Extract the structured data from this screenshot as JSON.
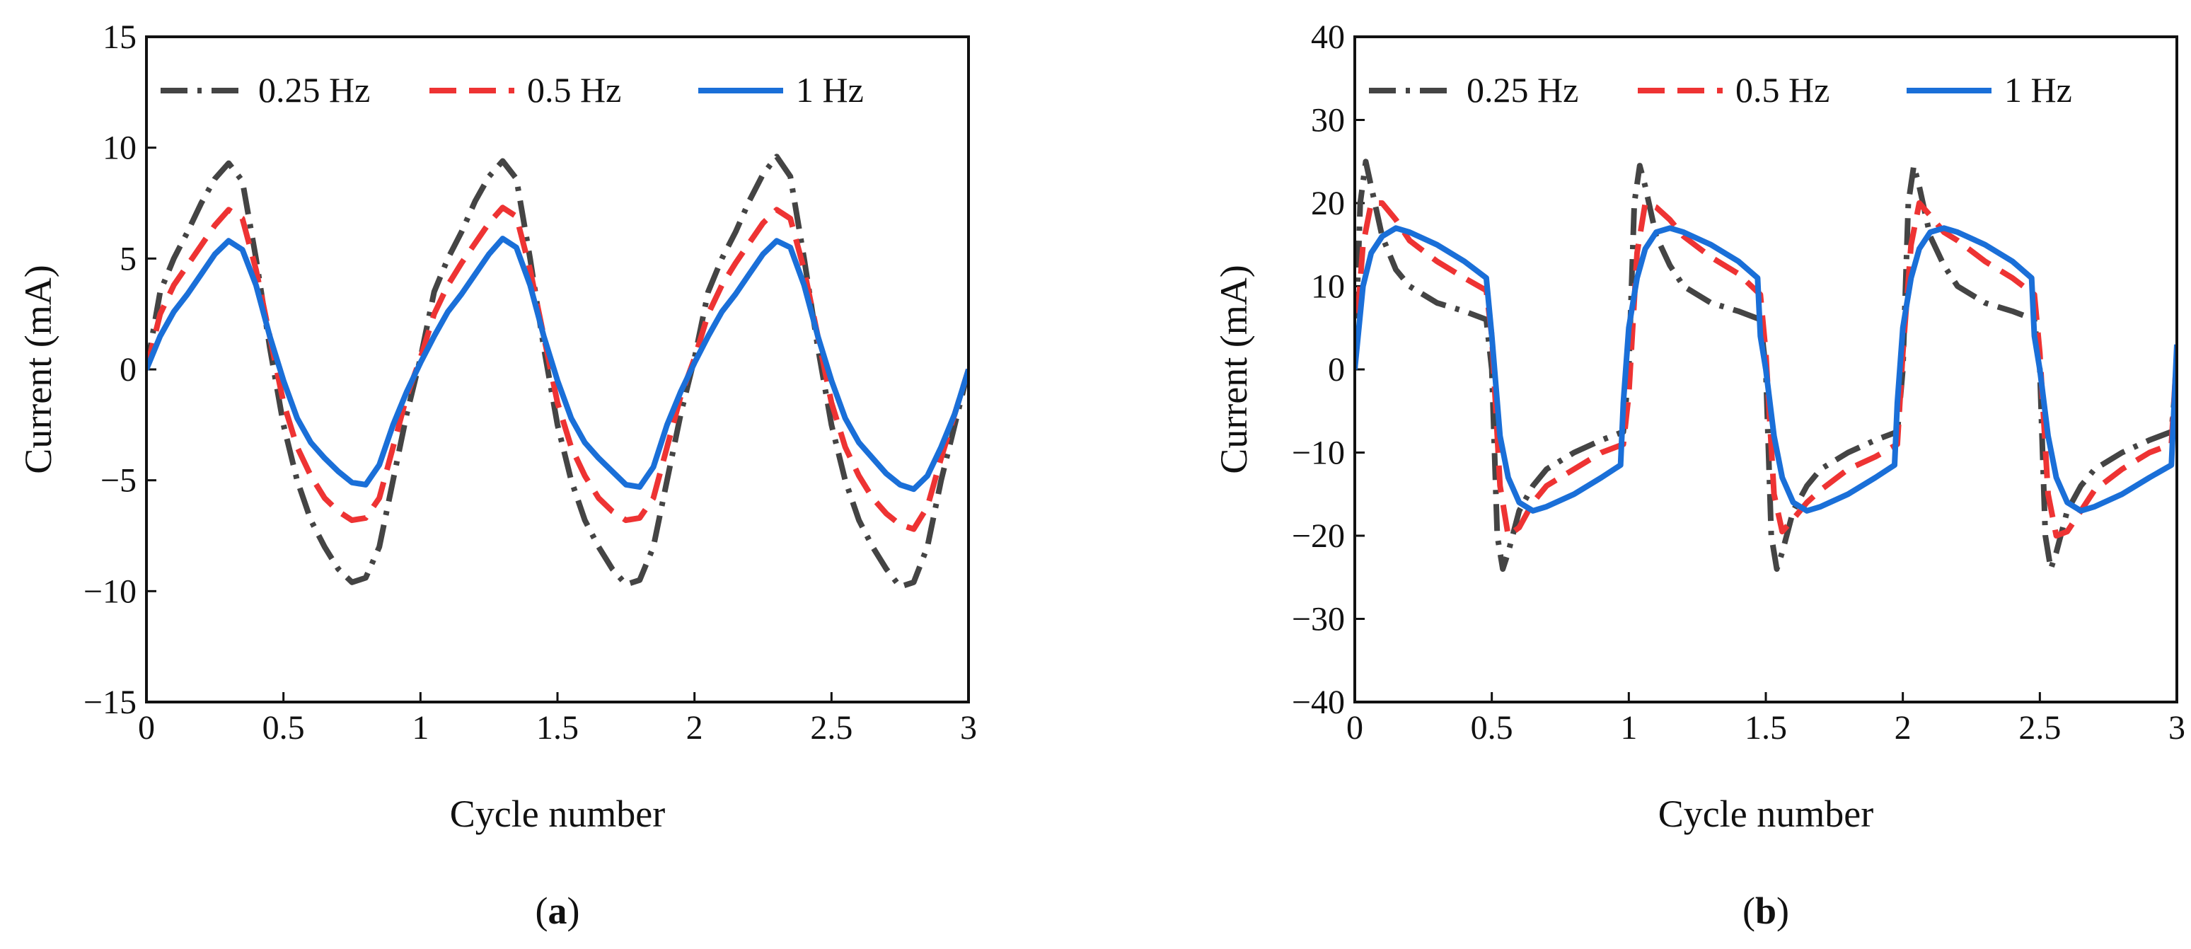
{
  "chart_data": [
    {
      "type": "line",
      "panel_label": "a",
      "xlabel": "Cycle number",
      "ylabel": "Current (mA)",
      "xlim": [
        0,
        3
      ],
      "ylim": [
        -15,
        15
      ],
      "xticks": [
        0,
        0.5,
        1,
        1.5,
        2,
        2.5,
        3
      ],
      "xtick_labels": [
        "0",
        "0.5",
        "1",
        "1.5",
        "2",
        "2.5",
        "3"
      ],
      "yticks": [
        -15,
        -10,
        -5,
        0,
        5,
        10,
        15
      ],
      "ytick_labels": [
        "−15",
        "−10",
        "−5",
        "0",
        "5",
        "10",
        "15"
      ],
      "legend_position": "top",
      "series": [
        {
          "name": "0.25 Hz",
          "color": "#444444",
          "style": "dashdot",
          "x": [
            0,
            0.05,
            0.1,
            0.15,
            0.2,
            0.25,
            0.3,
            0.35,
            0.4,
            0.45,
            0.5,
            0.55,
            0.6,
            0.65,
            0.7,
            0.75,
            0.8,
            0.85,
            0.9,
            0.95,
            1.0,
            1.05,
            1.1,
            1.15,
            1.2,
            1.25,
            1.3,
            1.35,
            1.4,
            1.45,
            1.5,
            1.55,
            1.6,
            1.65,
            1.7,
            1.75,
            1.8,
            1.85,
            1.9,
            1.95,
            2.0,
            2.05,
            2.1,
            2.15,
            2.2,
            2.25,
            2.3,
            2.35,
            2.4,
            2.45,
            2.5,
            2.55,
            2.6,
            2.65,
            2.7,
            2.75,
            2.8,
            2.85,
            2.9,
            2.95,
            3.0
          ],
          "y": [
            0,
            3.5,
            5.0,
            6.2,
            7.5,
            8.6,
            9.3,
            8.5,
            5.0,
            1.0,
            -2.5,
            -5.0,
            -6.8,
            -8.0,
            -9.0,
            -9.6,
            -9.4,
            -8.0,
            -5.0,
            -2.0,
            0.5,
            3.5,
            5.0,
            6.2,
            7.6,
            8.7,
            9.4,
            8.6,
            5.0,
            1.0,
            -2.5,
            -5.0,
            -6.8,
            -8.0,
            -9.0,
            -9.7,
            -9.5,
            -8.0,
            -5.0,
            -2.0,
            0.5,
            3.5,
            5.0,
            6.2,
            7.6,
            8.8,
            9.6,
            8.7,
            5.0,
            1.0,
            -2.5,
            -5.0,
            -6.8,
            -8.0,
            -9.0,
            -9.8,
            -9.6,
            -8.0,
            -5.0,
            -2.5,
            0
          ]
        },
        {
          "name": "0.5 Hz",
          "color": "#ee3333",
          "style": "dashed",
          "x": [
            0,
            0.05,
            0.1,
            0.15,
            0.2,
            0.25,
            0.3,
            0.35,
            0.4,
            0.45,
            0.5,
            0.55,
            0.6,
            0.65,
            0.7,
            0.75,
            0.8,
            0.85,
            0.9,
            0.95,
            1.0,
            1.05,
            1.1,
            1.15,
            1.2,
            1.25,
            1.3,
            1.35,
            1.4,
            1.45,
            1.5,
            1.55,
            1.6,
            1.65,
            1.7,
            1.75,
            1.8,
            1.85,
            1.9,
            1.95,
            2.0,
            2.05,
            2.1,
            2.15,
            2.2,
            2.25,
            2.3,
            2.35,
            2.4,
            2.45,
            2.5,
            2.55,
            2.6,
            2.65,
            2.7,
            2.75,
            2.8,
            2.85,
            2.9,
            2.95,
            3.0
          ],
          "y": [
            0,
            2.5,
            3.8,
            4.7,
            5.6,
            6.5,
            7.2,
            6.8,
            4.5,
            1.5,
            -1.5,
            -3.5,
            -4.8,
            -5.8,
            -6.4,
            -6.8,
            -6.7,
            -5.8,
            -3.5,
            -1.2,
            0.5,
            2.5,
            3.8,
            4.8,
            5.7,
            6.6,
            7.3,
            6.9,
            4.5,
            1.5,
            -1.5,
            -3.5,
            -4.8,
            -5.8,
            -6.4,
            -6.8,
            -6.7,
            -5.8,
            -3.5,
            -1.2,
            0.5,
            2.5,
            3.8,
            4.8,
            5.7,
            6.6,
            7.2,
            6.8,
            4.5,
            1.5,
            -1.5,
            -3.5,
            -4.8,
            -5.8,
            -6.5,
            -7.0,
            -7.2,
            -6.2,
            -4.0,
            -2.0,
            0
          ]
        },
        {
          "name": "1 Hz",
          "color": "#1a6fd8",
          "style": "solid",
          "x": [
            0,
            0.05,
            0.1,
            0.15,
            0.2,
            0.25,
            0.3,
            0.35,
            0.4,
            0.45,
            0.5,
            0.55,
            0.6,
            0.65,
            0.7,
            0.75,
            0.8,
            0.85,
            0.9,
            0.95,
            1.0,
            1.05,
            1.1,
            1.15,
            1.2,
            1.25,
            1.3,
            1.35,
            1.4,
            1.45,
            1.5,
            1.55,
            1.6,
            1.65,
            1.7,
            1.75,
            1.8,
            1.85,
            1.9,
            1.95,
            2.0,
            2.05,
            2.1,
            2.15,
            2.2,
            2.25,
            2.3,
            2.35,
            2.4,
            2.45,
            2.5,
            2.55,
            2.6,
            2.65,
            2.7,
            2.75,
            2.8,
            2.85,
            2.9,
            2.95,
            3.0
          ],
          "y": [
            0,
            1.5,
            2.6,
            3.4,
            4.3,
            5.2,
            5.8,
            5.4,
            3.8,
            1.5,
            -0.5,
            -2.2,
            -3.3,
            -4.0,
            -4.6,
            -5.1,
            -5.2,
            -4.3,
            -2.5,
            -1.0,
            0.3,
            1.5,
            2.6,
            3.4,
            4.3,
            5.2,
            5.9,
            5.5,
            3.8,
            1.5,
            -0.5,
            -2.2,
            -3.3,
            -4.0,
            -4.6,
            -5.2,
            -5.3,
            -4.4,
            -2.5,
            -1.0,
            0.3,
            1.5,
            2.6,
            3.4,
            4.3,
            5.2,
            5.8,
            5.5,
            3.8,
            1.5,
            -0.5,
            -2.2,
            -3.3,
            -4.0,
            -4.7,
            -5.2,
            -5.4,
            -4.8,
            -3.5,
            -2.0,
            0
          ]
        }
      ]
    },
    {
      "type": "line",
      "panel_label": "b",
      "xlabel": "Cycle number",
      "ylabel": "Current (mA)",
      "xlim": [
        0,
        3
      ],
      "ylim": [
        -40,
        40
      ],
      "xticks": [
        0,
        0.5,
        1,
        1.5,
        2,
        2.5,
        3
      ],
      "xtick_labels": [
        "0",
        "0.5",
        "1",
        "1.5",
        "2",
        "2.5",
        "3"
      ],
      "yticks": [
        -40,
        -30,
        -20,
        -10,
        0,
        10,
        20,
        30,
        40
      ],
      "ytick_labels": [
        "−40",
        "−30",
        "−20",
        "−10",
        "0",
        "10",
        "20",
        "30",
        "40"
      ],
      "legend_position": "top",
      "series": [
        {
          "name": "0.25 Hz",
          "color": "#444444",
          "style": "dashdot",
          "x": [
            0,
            0.02,
            0.04,
            0.06,
            0.1,
            0.15,
            0.2,
            0.3,
            0.4,
            0.48,
            0.5,
            0.52,
            0.54,
            0.56,
            0.6,
            0.65,
            0.7,
            0.8,
            0.9,
            0.98,
            1.0,
            1.02,
            1.04,
            1.06,
            1.1,
            1.15,
            1.2,
            1.3,
            1.4,
            1.48,
            1.5,
            1.52,
            1.54,
            1.56,
            1.6,
            1.65,
            1.7,
            1.8,
            1.9,
            1.98,
            2.0,
            2.02,
            2.04,
            2.06,
            2.1,
            2.15,
            2.2,
            2.3,
            2.4,
            2.48,
            2.5,
            2.52,
            2.54,
            2.56,
            2.6,
            2.65,
            2.7,
            2.8,
            2.9,
            2.98,
            3.0
          ],
          "y": [
            0,
            20,
            25,
            22,
            16,
            12,
            10,
            8,
            7,
            6,
            0,
            -20,
            -24,
            -22,
            -17,
            -14,
            -12,
            -10,
            -8.5,
            -7.5,
            0,
            20,
            24.5,
            22,
            16,
            12.5,
            10,
            8,
            7,
            6,
            0,
            -20,
            -24,
            -22,
            -17,
            -14,
            -12,
            -10,
            -8.5,
            -7.5,
            0,
            20,
            24.5,
            22,
            16,
            12.5,
            10,
            8,
            7,
            6,
            0,
            -20,
            -24,
            -22,
            -17,
            -14,
            -12,
            -10,
            -8.5,
            -7.5,
            0
          ]
        },
        {
          "name": "0.5 Hz",
          "color": "#ee3333",
          "style": "dashed",
          "x": [
            0,
            0.03,
            0.06,
            0.1,
            0.15,
            0.2,
            0.3,
            0.4,
            0.48,
            0.5,
            0.53,
            0.56,
            0.6,
            0.65,
            0.7,
            0.8,
            0.9,
            0.98,
            1.0,
            1.03,
            1.06,
            1.1,
            1.15,
            1.2,
            1.3,
            1.4,
            1.48,
            1.5,
            1.53,
            1.56,
            1.6,
            1.65,
            1.7,
            1.8,
            1.9,
            1.98,
            2.0,
            2.03,
            2.06,
            2.1,
            2.15,
            2.2,
            2.3,
            2.4,
            2.48,
            2.5,
            2.53,
            2.56,
            2.6,
            2.65,
            2.7,
            2.8,
            2.9,
            2.98,
            3.0
          ],
          "y": [
            2,
            15,
            20,
            20,
            18,
            15.5,
            13,
            11,
            9.5,
            4,
            -14,
            -20,
            -19,
            -16,
            -14,
            -12,
            -10,
            -9,
            -3,
            14,
            20,
            19.5,
            18,
            16,
            13.5,
            11.5,
            9,
            2,
            -15,
            -19.5,
            -18,
            -16,
            -14.5,
            -12,
            -10.5,
            -9,
            2,
            15,
            20,
            18.5,
            16.5,
            15.5,
            13,
            11,
            9,
            2,
            -15,
            -20,
            -19.5,
            -17,
            -14.5,
            -12,
            -10,
            -9,
            2
          ]
        },
        {
          "name": "1 Hz",
          "color": "#1a6fd8",
          "style": "solid",
          "x": [
            0,
            0.03,
            0.06,
            0.1,
            0.15,
            0.2,
            0.3,
            0.4,
            0.48,
            0.5,
            0.53,
            0.56,
            0.6,
            0.65,
            0.7,
            0.8,
            0.9,
            0.97,
            0.98,
            1.0,
            1.03,
            1.06,
            1.1,
            1.15,
            1.2,
            1.3,
            1.4,
            1.47,
            1.48,
            1.5,
            1.53,
            1.56,
            1.6,
            1.65,
            1.7,
            1.8,
            1.9,
            1.97,
            1.98,
            2.0,
            2.03,
            2.06,
            2.1,
            2.15,
            2.2,
            2.3,
            2.4,
            2.47,
            2.48,
            2.5,
            2.53,
            2.56,
            2.6,
            2.65,
            2.7,
            2.8,
            2.9,
            2.98,
            3.0
          ],
          "y": [
            0,
            10,
            14,
            16,
            17,
            16.5,
            15,
            13,
            11,
            4,
            -8,
            -13,
            -16,
            -17,
            -16.5,
            -15,
            -13,
            -11.5,
            -4,
            5,
            11,
            14.5,
            16.5,
            17,
            16.5,
            15,
            13,
            11,
            4,
            0,
            -8,
            -13,
            -16,
            -17,
            -16.5,
            -15,
            -13,
            -11.5,
            -4,
            5,
            11,
            14.5,
            16.5,
            17,
            16.5,
            15,
            13,
            11,
            4,
            0,
            -8,
            -13,
            -16,
            -17,
            -16.5,
            -15,
            -13,
            -11.5,
            3
          ]
        }
      ]
    }
  ]
}
